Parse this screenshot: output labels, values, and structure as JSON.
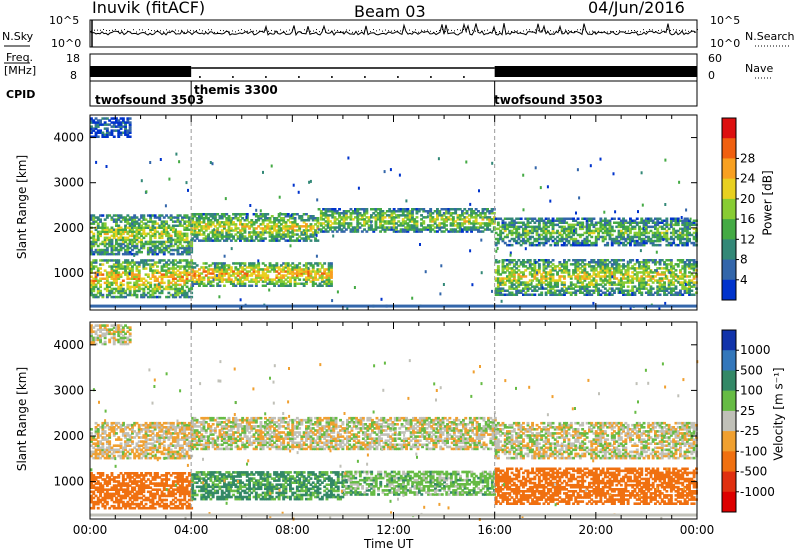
{
  "header": {
    "station": "Inuvik (fitACF)",
    "beam": "Beam 03",
    "date": "04/Jun/2016"
  },
  "top_panels": {
    "nsky_label": "N.Sky",
    "nsearch_label": "N.Search",
    "noise_ticks": [
      "10^5",
      "10^0"
    ],
    "freq_label": "Freq.",
    "freq_unit": "[MHz]",
    "freq_ticks": [
      "18",
      "8"
    ],
    "nave_label": "Nave",
    "nave_ticks": [
      "60",
      "0"
    ],
    "cpid_label": "CPID",
    "cpid_segments": [
      {
        "name": "twofsound 3503",
        "start_h": 0,
        "end_h": 4
      },
      {
        "name": "themis 3300",
        "start_h": 4,
        "end_h": 16
      },
      {
        "name": "twofsound 3503",
        "start_h": 16,
        "end_h": 24
      }
    ]
  },
  "x_axis": {
    "label": "Time UT",
    "ticks": [
      "00:00",
      "04:00",
      "08:00",
      "12:00",
      "16:00",
      "20:00",
      "00:00"
    ]
  },
  "chart_data": [
    {
      "type": "heatmap",
      "panel": "power",
      "ylabel": "Slant Range [km]",
      "xlim_hours": [
        0,
        24
      ],
      "ylim_km": [
        180,
        4500
      ],
      "yticks": [
        "1000",
        "2000",
        "3000",
        "4000"
      ],
      "colorbar_label": "Power [dB]",
      "colorbar_ticks": [
        "4",
        "8",
        "12",
        "16",
        "20",
        "24",
        "28"
      ],
      "colorbar_colors": [
        "#0033cc",
        "#3366aa",
        "#338877",
        "#44aa44",
        "#88cc33",
        "#e8d020",
        "#f8a020",
        "#f06010",
        "#dd1010"
      ],
      "echo_bands": [
        {
          "t0": 0,
          "t1": 4,
          "r0": 1400,
          "r1": 2300,
          "level": 0.55
        },
        {
          "t0": 0,
          "t1": 4,
          "r0": 450,
          "r1": 1300,
          "level": 0.7
        },
        {
          "t0": 4,
          "t1": 9,
          "r0": 1700,
          "r1": 2300,
          "level": 0.6
        },
        {
          "t0": 4,
          "t1": 9.5,
          "r0": 700,
          "r1": 1200,
          "level": 0.75
        },
        {
          "t0": 9,
          "t1": 16,
          "r0": 1900,
          "r1": 2400,
          "level": 0.55
        },
        {
          "t0": 16,
          "t1": 24,
          "r0": 1600,
          "r1": 2200,
          "level": 0.45
        },
        {
          "t0": 16,
          "t1": 24,
          "r0": 500,
          "r1": 1300,
          "level": 0.6
        },
        {
          "t0": 0,
          "t1": 1.6,
          "r0": 4000,
          "r1": 4450,
          "level": 0.15
        }
      ]
    },
    {
      "type": "heatmap",
      "panel": "velocity",
      "ylabel": "Slant Range [km]",
      "xlim_hours": [
        0,
        24
      ],
      "ylim_km": [
        180,
        4500
      ],
      "yticks": [
        "1000",
        "2000",
        "3000",
        "4000"
      ],
      "colorbar_label": "Velocity [m s⁻¹]",
      "colorbar_ticks": [
        "1000",
        "500",
        "100",
        "25",
        "-25",
        "-100",
        "-500",
        "-1000"
      ],
      "colorbar_colors": [
        "#1133aa",
        "#3377bb",
        "#338866",
        "#66bb44",
        "#c0c0b8",
        "#f0a030",
        "#f07010",
        "#e03010",
        "#dd0000"
      ],
      "echo_bands": [
        {
          "t0": 0,
          "t1": 4,
          "r0": 1500,
          "r1": 2300,
          "vel": -20
        },
        {
          "t0": 0,
          "t1": 4,
          "r0": 400,
          "r1": 1200,
          "vel": -300
        },
        {
          "t0": 4,
          "t1": 16,
          "r0": 1700,
          "r1": 2400,
          "vel": 0
        },
        {
          "t0": 4,
          "t1": 10,
          "r0": 600,
          "r1": 1200,
          "vel": 120
        },
        {
          "t0": 10,
          "t1": 16,
          "r0": 700,
          "r1": 1200,
          "vel": 60
        },
        {
          "t0": 16,
          "t1": 24,
          "r0": 1500,
          "r1": 2300,
          "vel": 0
        },
        {
          "t0": 16,
          "t1": 24,
          "r0": 500,
          "r1": 1300,
          "vel": -200
        },
        {
          "t0": 0,
          "t1": 1.6,
          "r0": 4000,
          "r1": 4450,
          "vel": 0
        }
      ]
    }
  ]
}
